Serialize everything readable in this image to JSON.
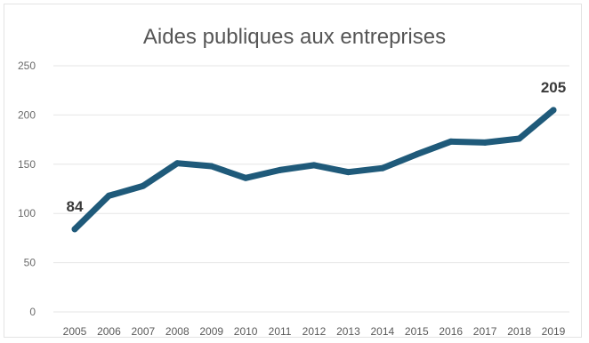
{
  "chart_data": {
    "type": "line",
    "title": "Aides publiques aux entreprises",
    "xlabel": "",
    "ylabel": "",
    "x": [
      "2005",
      "2006",
      "2007",
      "2008",
      "2009",
      "2010",
      "2011",
      "2012",
      "2013",
      "2014",
      "2015",
      "2016",
      "2017",
      "2018",
      "2019"
    ],
    "series": [
      {
        "values": [
          84,
          118,
          128,
          151,
          148,
          136,
          144,
          149,
          142,
          146,
          160,
          173,
          172,
          176,
          205
        ],
        "color": "#1f5a7a"
      }
    ],
    "data_labels": [
      {
        "index": 0,
        "text": "84"
      },
      {
        "index": 14,
        "text": "205"
      }
    ],
    "y_ticks": [
      "0",
      "50",
      "100",
      "150",
      "200",
      "250"
    ],
    "ylim": [
      0,
      250
    ],
    "grid": true,
    "legend": "none"
  }
}
